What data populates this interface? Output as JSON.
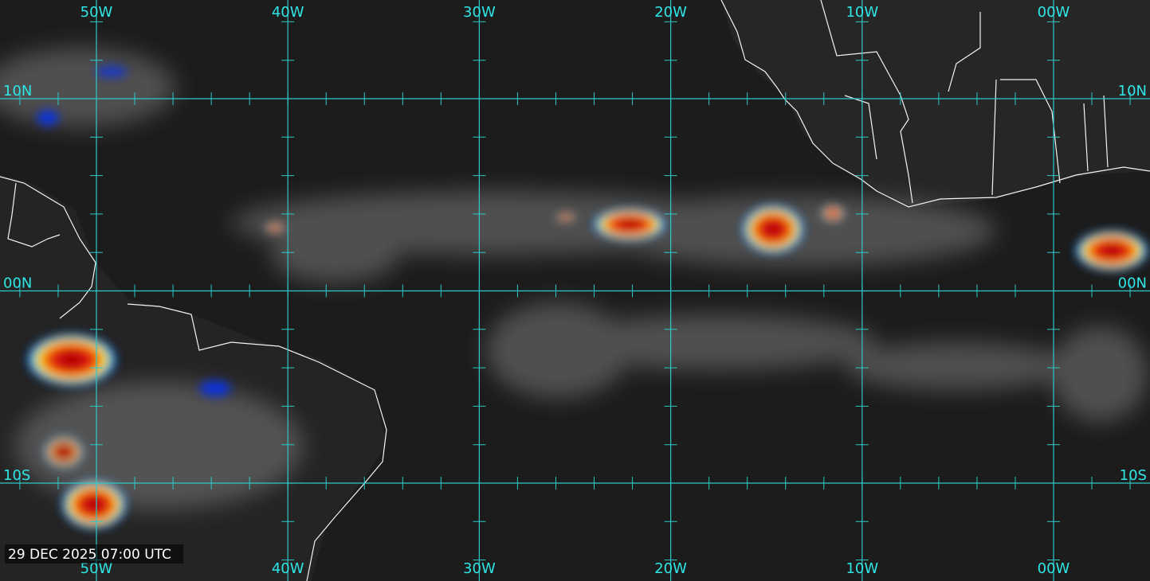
{
  "longitude_labels": [
    "50W",
    "40W",
    "30W",
    "20W",
    "10W",
    "00W"
  ],
  "latitude_labels": [
    "10N",
    "00N",
    "10S"
  ],
  "timestamp": "29 DEC 2025 07:00 UTC"
}
